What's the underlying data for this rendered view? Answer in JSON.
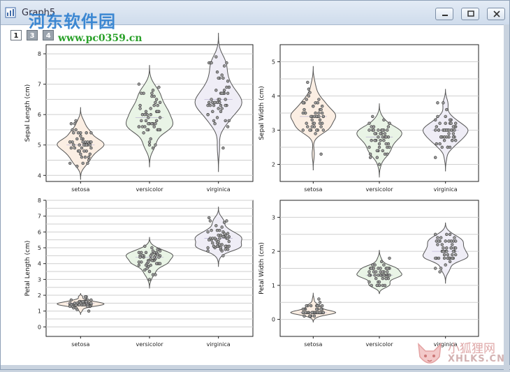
{
  "window": {
    "title": "Graph5",
    "layer_tabs": [
      "1",
      "3",
      "4"
    ],
    "buttons": [
      "minimize",
      "restore",
      "close"
    ]
  },
  "watermark": {
    "site_name": "河东软件园",
    "site_url": "www.pc0359.cn",
    "corner_name": "小狐狸网",
    "corner_url": "XHLKS.CN"
  },
  "colors": {
    "setosa": "#fbeee3",
    "versicolor": "#e9f4e6",
    "virginica": "#efedf6",
    "outline": "#555555",
    "points": "#7a7a7a"
  },
  "chart_data": [
    {
      "type": "violin",
      "categories": [
        "setosa",
        "versicolor",
        "virginica"
      ],
      "ylabel": "Sepal Length (cm)",
      "yticks": [
        "4",
        "5",
        "6",
        "7",
        "8"
      ],
      "ylim": [
        3.8,
        8.3
      ],
      "series": [
        {
          "values": [
            5.1,
            4.9,
            4.7,
            4.6,
            5.0,
            5.4,
            4.6,
            5.0,
            4.4,
            4.9,
            5.4,
            4.8,
            4.8,
            4.3,
            5.8,
            5.7,
            5.4,
            5.1,
            5.7,
            5.1,
            5.4,
            5.1,
            4.6,
            5.1,
            4.8,
            5.0,
            5.0,
            5.2,
            5.2,
            4.7,
            4.8,
            5.4,
            5.2,
            5.5,
            4.9,
            5.0,
            5.5,
            4.9,
            4.4,
            5.1,
            5.0,
            4.5,
            4.4,
            5.0,
            5.1,
            4.8,
            5.1,
            4.6,
            5.3,
            5.0
          ]
        },
        {
          "values": [
            7.0,
            6.4,
            6.9,
            5.5,
            6.5,
            5.7,
            6.3,
            4.9,
            6.6,
            5.2,
            5.0,
            5.9,
            6.0,
            6.1,
            5.6,
            6.7,
            5.6,
            5.8,
            6.2,
            5.6,
            5.9,
            6.1,
            6.3,
            6.1,
            6.4,
            6.6,
            6.8,
            6.7,
            6.0,
            5.7,
            5.5,
            5.5,
            5.8,
            6.0,
            5.4,
            6.0,
            6.7,
            6.3,
            5.6,
            5.5,
            5.5,
            6.1,
            5.8,
            5.0,
            5.6,
            5.7,
            5.7,
            6.2,
            5.1,
            5.7
          ]
        },
        {
          "values": [
            6.3,
            5.8,
            7.1,
            6.3,
            6.5,
            7.6,
            4.9,
            7.3,
            6.7,
            7.2,
            6.5,
            6.4,
            6.8,
            5.7,
            5.8,
            6.4,
            6.5,
            7.7,
            7.7,
            6.0,
            6.9,
            5.6,
            7.7,
            6.3,
            6.7,
            7.2,
            6.2,
            6.1,
            6.4,
            7.2,
            7.4,
            7.9,
            6.4,
            6.3,
            6.1,
            7.7,
            6.3,
            6.4,
            6.0,
            6.9,
            6.7,
            6.9,
            5.8,
            6.8,
            6.7,
            6.7,
            6.3,
            6.5,
            6.2,
            5.9
          ]
        }
      ]
    },
    {
      "type": "violin",
      "categories": [
        "setosa",
        "versicolor",
        "virginica"
      ],
      "ylabel": "Sepal Width (cm)",
      "yticks": [
        "2",
        "3",
        "4",
        "5"
      ],
      "ylim": [
        1.5,
        5.5
      ],
      "series": [
        {
          "values": [
            3.5,
            3.0,
            3.2,
            3.1,
            3.6,
            3.9,
            3.4,
            3.4,
            2.9,
            3.1,
            3.7,
            3.4,
            3.0,
            3.0,
            4.0,
            4.4,
            3.9,
            3.5,
            3.8,
            3.8,
            3.4,
            3.7,
            3.6,
            3.3,
            3.4,
            3.0,
            3.4,
            3.5,
            3.4,
            3.2,
            3.1,
            3.4,
            4.1,
            4.2,
            3.1,
            3.2,
            3.5,
            3.6,
            3.0,
            3.4,
            3.5,
            2.3,
            3.2,
            3.5,
            3.8,
            3.0,
            3.8,
            3.2,
            3.7,
            3.3
          ]
        },
        {
          "values": [
            3.2,
            3.2,
            3.1,
            2.3,
            2.8,
            2.8,
            3.3,
            2.4,
            2.9,
            2.7,
            2.0,
            3.0,
            2.2,
            2.9,
            2.9,
            3.1,
            3.0,
            2.7,
            2.2,
            2.5,
            3.2,
            2.8,
            2.5,
            2.8,
            2.9,
            3.0,
            2.8,
            3.0,
            2.9,
            2.6,
            2.4,
            2.4,
            2.7,
            2.7,
            3.0,
            3.4,
            3.1,
            2.3,
            3.0,
            2.5,
            2.6,
            3.0,
            2.6,
            2.3,
            2.7,
            3.0,
            2.9,
            2.9,
            2.5,
            2.8
          ]
        },
        {
          "values": [
            3.3,
            2.7,
            3.0,
            2.9,
            3.0,
            3.0,
            2.5,
            2.9,
            2.5,
            3.6,
            3.2,
            2.7,
            3.0,
            2.5,
            2.8,
            3.2,
            3.0,
            3.8,
            2.6,
            2.2,
            3.2,
            2.8,
            2.8,
            2.7,
            3.3,
            3.2,
            2.8,
            3.0,
            2.8,
            3.0,
            2.8,
            3.8,
            2.8,
            2.8,
            2.6,
            3.0,
            3.4,
            3.1,
            3.0,
            3.1,
            3.1,
            3.1,
            2.7,
            3.2,
            3.3,
            3.0,
            2.5,
            3.0,
            3.4,
            3.0
          ]
        }
      ]
    },
    {
      "type": "violin",
      "categories": [
        "setosa",
        "versicolor",
        "virginica"
      ],
      "ylabel": "Petal Length (cm)",
      "yticks": [
        "0",
        "1",
        "2",
        "3",
        "4",
        "5",
        "6",
        "7",
        "8"
      ],
      "ylim": [
        -0.6,
        8.0
      ],
      "series": [
        {
          "values": [
            1.4,
            1.4,
            1.3,
            1.5,
            1.4,
            1.7,
            1.4,
            1.5,
            1.4,
            1.5,
            1.5,
            1.6,
            1.4,
            1.1,
            1.2,
            1.5,
            1.3,
            1.4,
            1.7,
            1.5,
            1.7,
            1.5,
            1.0,
            1.7,
            1.9,
            1.6,
            1.6,
            1.5,
            1.4,
            1.6,
            1.6,
            1.5,
            1.5,
            1.4,
            1.5,
            1.2,
            1.3,
            1.4,
            1.3,
            1.5,
            1.3,
            1.3,
            1.3,
            1.6,
            1.9,
            1.4,
            1.6,
            1.4,
            1.5,
            1.4
          ]
        },
        {
          "values": [
            4.7,
            4.5,
            4.9,
            4.0,
            4.6,
            4.5,
            4.7,
            3.3,
            4.6,
            3.9,
            3.5,
            4.2,
            4.0,
            4.7,
            3.6,
            4.4,
            4.5,
            4.1,
            4.5,
            3.9,
            4.8,
            4.0,
            4.9,
            4.7,
            4.3,
            4.4,
            4.8,
            5.0,
            4.5,
            3.5,
            3.8,
            3.7,
            3.9,
            5.1,
            4.5,
            4.5,
            4.7,
            4.4,
            4.1,
            4.0,
            4.4,
            4.6,
            4.0,
            3.3,
            4.2,
            4.2,
            4.2,
            4.3,
            3.0,
            4.1
          ]
        },
        {
          "values": [
            6.0,
            5.1,
            5.9,
            5.6,
            5.8,
            6.6,
            4.5,
            6.3,
            5.8,
            6.1,
            5.1,
            5.3,
            5.5,
            5.0,
            5.1,
            5.3,
            5.5,
            6.7,
            6.9,
            5.0,
            5.7,
            4.9,
            6.7,
            4.9,
            5.7,
            6.0,
            4.8,
            4.9,
            5.6,
            5.8,
            6.1,
            6.4,
            5.6,
            5.1,
            5.6,
            6.1,
            5.6,
            5.5,
            4.8,
            5.4,
            5.6,
            5.1,
            5.1,
            5.9,
            5.7,
            5.2,
            5.0,
            5.2,
            5.4,
            5.1
          ]
        }
      ]
    },
    {
      "type": "violin",
      "categories": [
        "setosa",
        "versicolor",
        "virginica"
      ],
      "ylabel": "Petal Width (cm)",
      "yticks": [
        "0",
        "1",
        "2",
        "3"
      ],
      "ylim": [
        -0.5,
        3.5
      ],
      "series": [
        {
          "values": [
            0.2,
            0.2,
            0.2,
            0.2,
            0.2,
            0.4,
            0.3,
            0.2,
            0.2,
            0.1,
            0.2,
            0.2,
            0.1,
            0.1,
            0.2,
            0.4,
            0.4,
            0.3,
            0.3,
            0.3,
            0.2,
            0.4,
            0.2,
            0.5,
            0.2,
            0.2,
            0.4,
            0.2,
            0.2,
            0.2,
            0.2,
            0.4,
            0.1,
            0.2,
            0.2,
            0.2,
            0.2,
            0.1,
            0.2,
            0.2,
            0.3,
            0.3,
            0.2,
            0.6,
            0.4,
            0.3,
            0.2,
            0.2,
            0.2,
            0.2
          ]
        },
        {
          "values": [
            1.4,
            1.5,
            1.5,
            1.3,
            1.5,
            1.3,
            1.6,
            1.0,
            1.3,
            1.4,
            1.0,
            1.5,
            1.0,
            1.4,
            1.3,
            1.4,
            1.5,
            1.0,
            1.5,
            1.1,
            1.8,
            1.3,
            1.5,
            1.2,
            1.3,
            1.4,
            1.4,
            1.7,
            1.5,
            1.0,
            1.1,
            1.0,
            1.2,
            1.6,
            1.5,
            1.6,
            1.5,
            1.3,
            1.3,
            1.3,
            1.2,
            1.4,
            1.2,
            1.0,
            1.3,
            1.2,
            1.3,
            1.3,
            1.1,
            1.3
          ]
        },
        {
          "values": [
            2.5,
            1.9,
            2.1,
            1.8,
            2.2,
            2.1,
            1.7,
            1.8,
            1.8,
            2.5,
            2.0,
            1.9,
            2.1,
            2.0,
            2.4,
            2.3,
            1.8,
            2.2,
            2.3,
            1.5,
            2.3,
            2.0,
            2.0,
            1.8,
            2.1,
            1.8,
            1.8,
            1.8,
            2.1,
            1.6,
            1.9,
            2.0,
            2.2,
            1.5,
            1.4,
            2.3,
            2.4,
            1.8,
            1.8,
            2.1,
            2.4,
            2.3,
            1.9,
            2.3,
            2.5,
            2.3,
            1.9,
            2.0,
            2.3,
            1.8
          ]
        }
      ]
    }
  ]
}
